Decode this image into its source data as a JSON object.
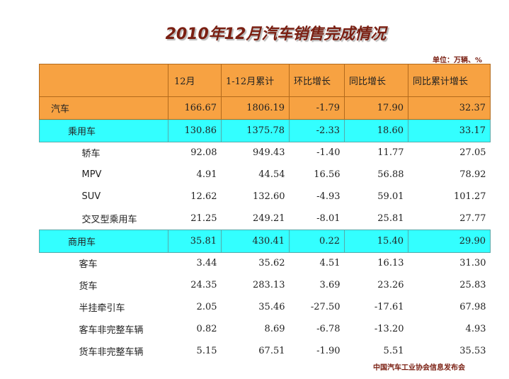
{
  "title": "2010年12月汽车销售完成情况",
  "unit_note": "单位：万辆、%",
  "headers": [
    "",
    "12月",
    "1-12月累计",
    "环比增长",
    "同比增长",
    "同比累计增长"
  ],
  "rows": [
    {
      "name": "汽车",
      "type": "total",
      "values": [
        "166.67",
        "1806.19",
        "-1.79",
        "17.90",
        "32.37"
      ]
    },
    {
      "name": "乘用车",
      "type": "cat",
      "values": [
        "130.86",
        "1375.78",
        "-2.33",
        "18.60",
        "33.17"
      ]
    },
    {
      "name": "轿车",
      "type": "sub",
      "values": [
        "92.08",
        "949.43",
        "-1.40",
        "11.77",
        "27.05"
      ]
    },
    {
      "name": "MPV",
      "type": "sub",
      "values": [
        "4.91",
        "44.54",
        "16.56",
        "56.88",
        "78.92"
      ]
    },
    {
      "name": "SUV",
      "type": "sub",
      "values": [
        "12.62",
        "132.60",
        "-4.93",
        "59.01",
        "101.27"
      ]
    },
    {
      "name": "交叉型乘用车",
      "type": "sub",
      "values": [
        "21.25",
        "249.21",
        "-8.01",
        "25.81",
        "27.77"
      ]
    },
    {
      "name": "商用车",
      "type": "cat",
      "values": [
        "35.81",
        "430.41",
        "0.22",
        "15.40",
        "29.90"
      ]
    },
    {
      "name": "客车",
      "type": "com",
      "values": [
        "3.44",
        "35.62",
        "4.51",
        "16.13",
        "31.30"
      ]
    },
    {
      "name": "货车",
      "type": "com",
      "values": [
        "24.35",
        "283.13",
        "3.69",
        "23.26",
        "25.83"
      ]
    },
    {
      "name": "半挂牵引车",
      "type": "com",
      "values": [
        "2.05",
        "35.46",
        "-27.50",
        "-17.61",
        "67.98"
      ]
    },
    {
      "name": "客车非完整车辆",
      "type": "com",
      "values": [
        "0.82",
        "8.69",
        "-6.78",
        "-13.20",
        "4.93"
      ]
    },
    {
      "name": "货车非完整车辆",
      "type": "com",
      "values": [
        "5.15",
        "67.51",
        "-1.90",
        "5.51",
        "35.53"
      ]
    }
  ],
  "footer": "中国汽车工业协会信息发布会",
  "colors": {
    "header_bg": "#f7a242",
    "category_bg": "#33ffff",
    "title": "#7a1f12"
  }
}
